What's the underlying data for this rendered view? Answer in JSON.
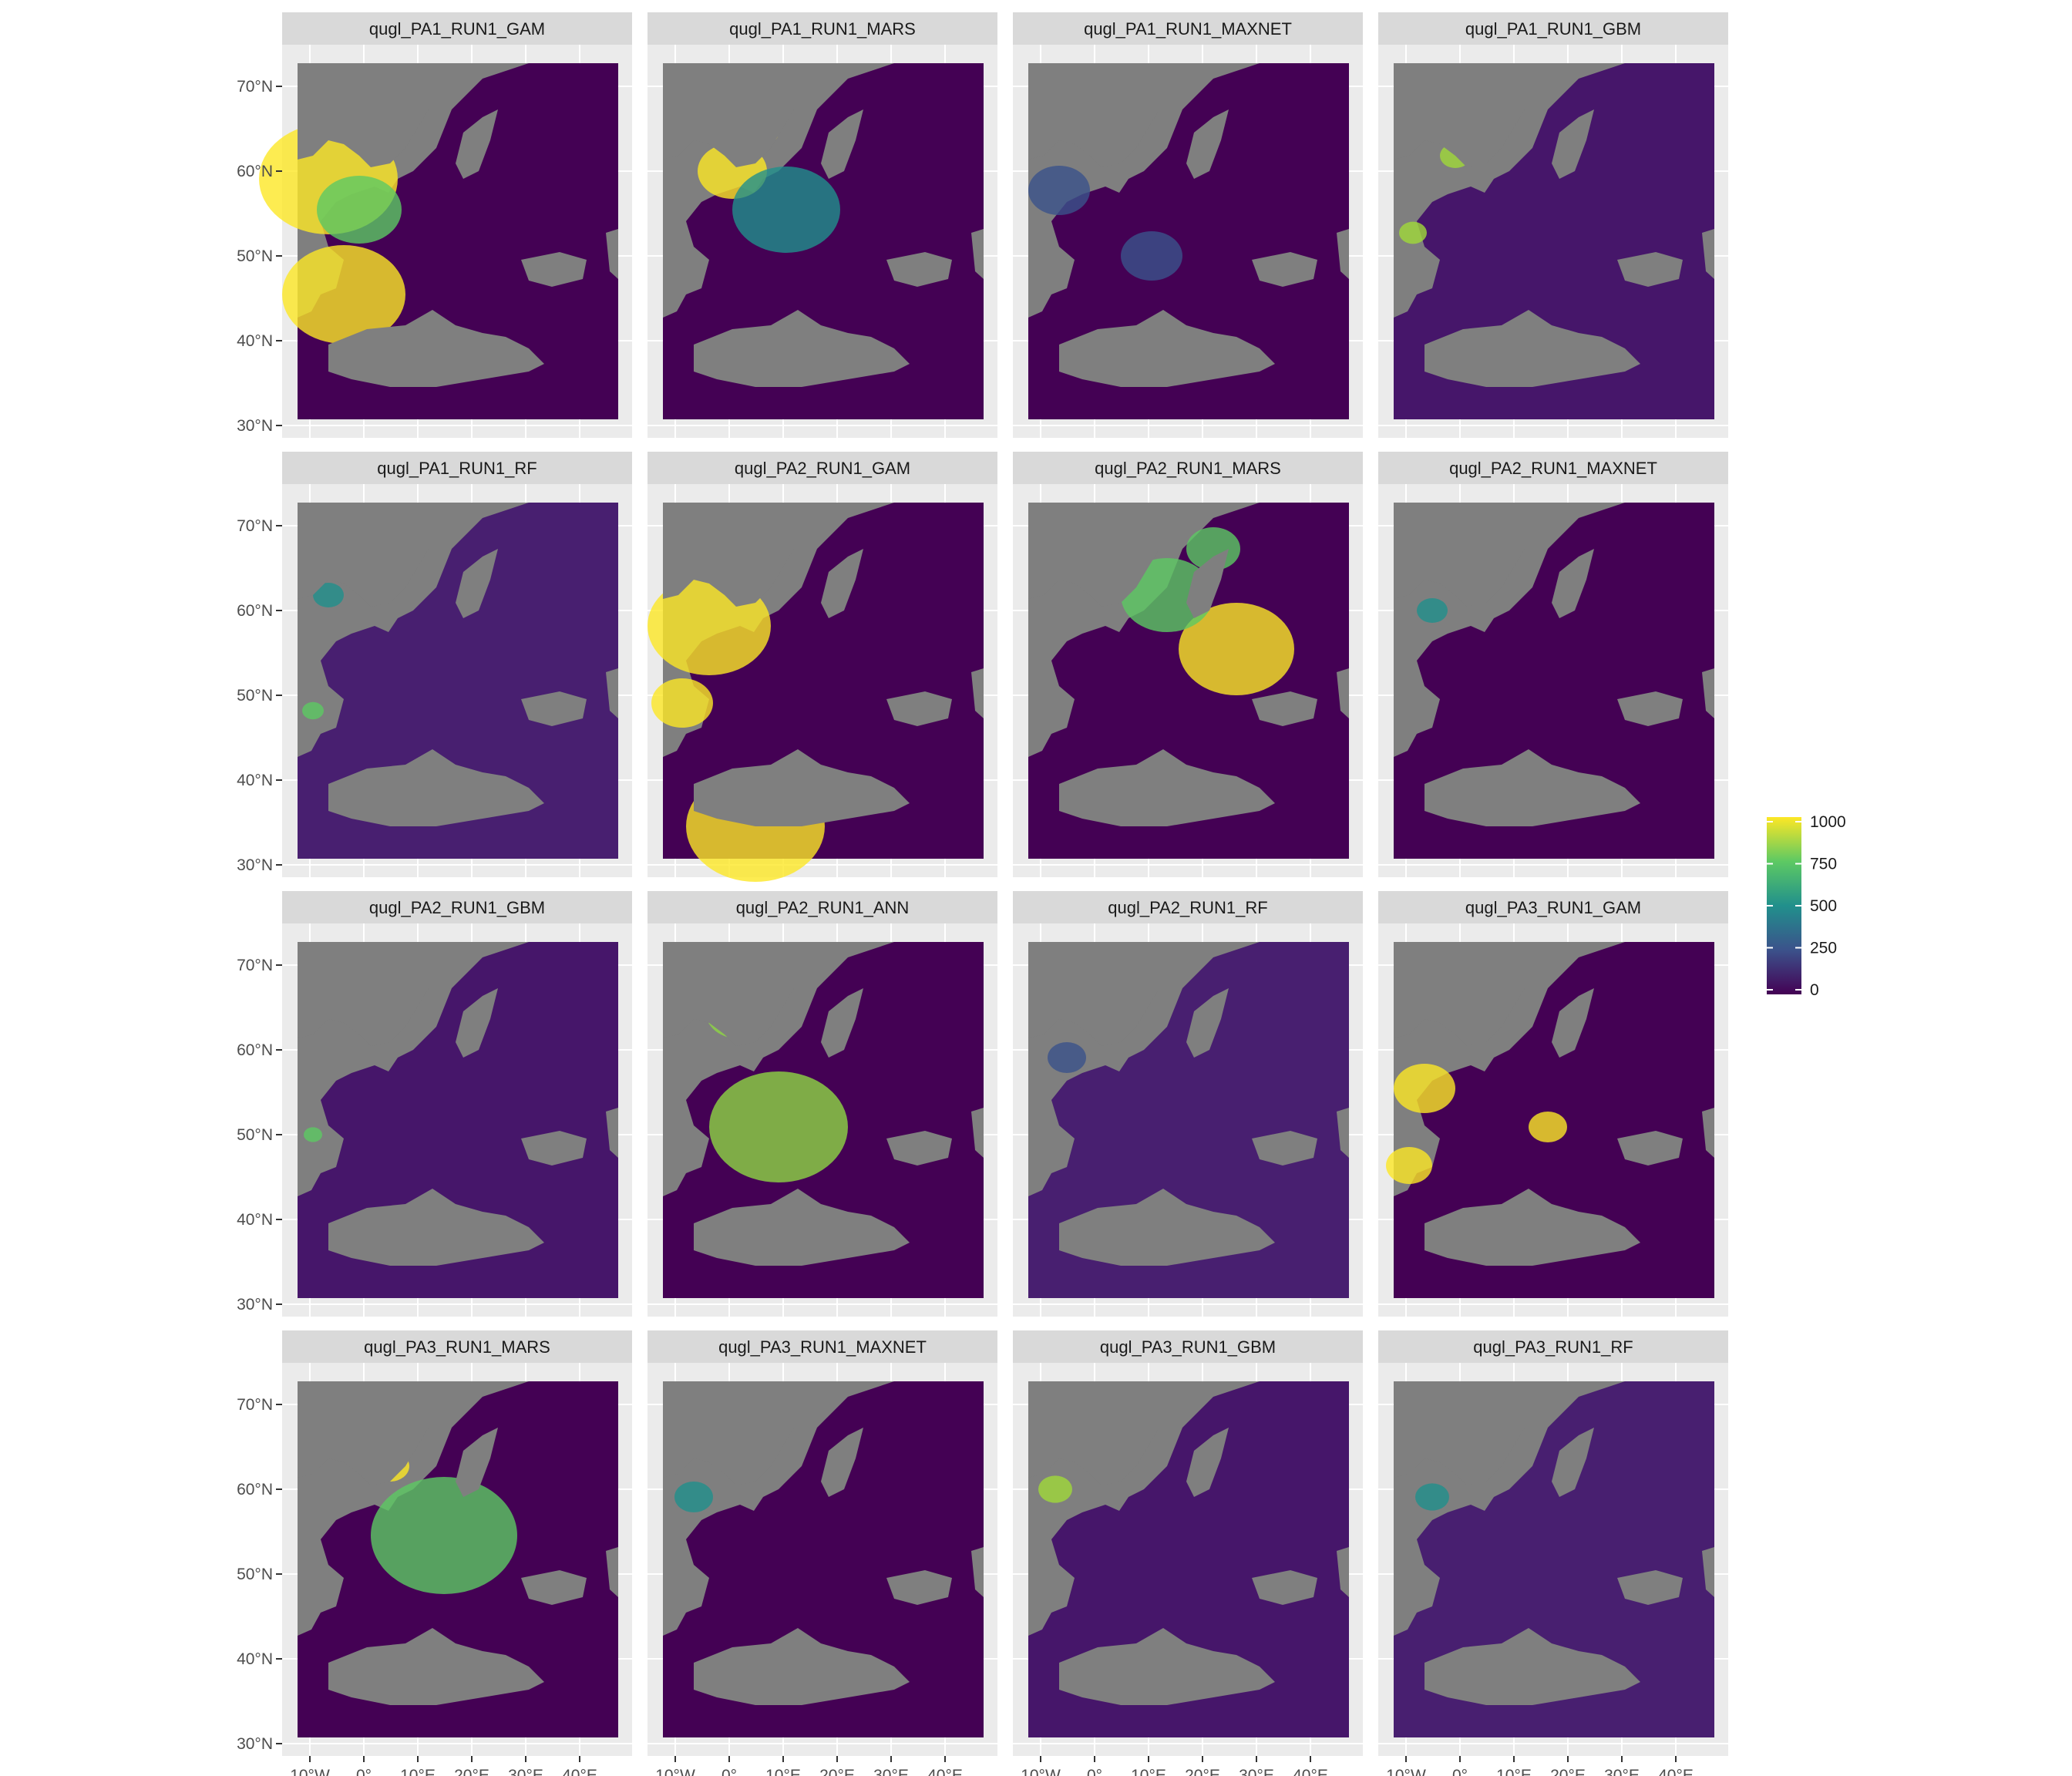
{
  "figure": {
    "panels": [
      "qugl_PA1_RUN1_GAM",
      "qugl_PA1_RUN1_MARS",
      "qugl_PA1_RUN1_MAXNET",
      "qugl_PA1_RUN1_GBM",
      "qugl_PA1_RUN1_RF",
      "qugl_PA2_RUN1_GAM",
      "qugl_PA2_RUN1_MARS",
      "qugl_PA2_RUN1_MAXNET",
      "qugl_PA2_RUN1_GBM",
      "qugl_PA2_RUN1_ANN",
      "qugl_PA2_RUN1_RF",
      "qugl_PA3_RUN1_GAM",
      "qugl_PA3_RUN1_MARS",
      "qugl_PA3_RUN1_MAXNET",
      "qugl_PA3_RUN1_GBM",
      "qugl_PA3_RUN1_RF"
    ],
    "y_ticks": [
      "70°N",
      "60°N",
      "50°N",
      "40°N",
      "30°N"
    ],
    "x_ticks": [
      "10°W",
      "0°",
      "10°E",
      "20°E",
      "30°E",
      "40°E"
    ],
    "legend": {
      "ticks": [
        "1000",
        "750",
        "500",
        "250",
        "0"
      ],
      "palette": "viridis",
      "range": [
        0,
        1000
      ]
    },
    "colors": {
      "panel_background": "#ebebeb",
      "strip_background": "#d9d9d9",
      "no_data": "#7f7f7f",
      "grid": "#ffffff"
    }
  }
}
